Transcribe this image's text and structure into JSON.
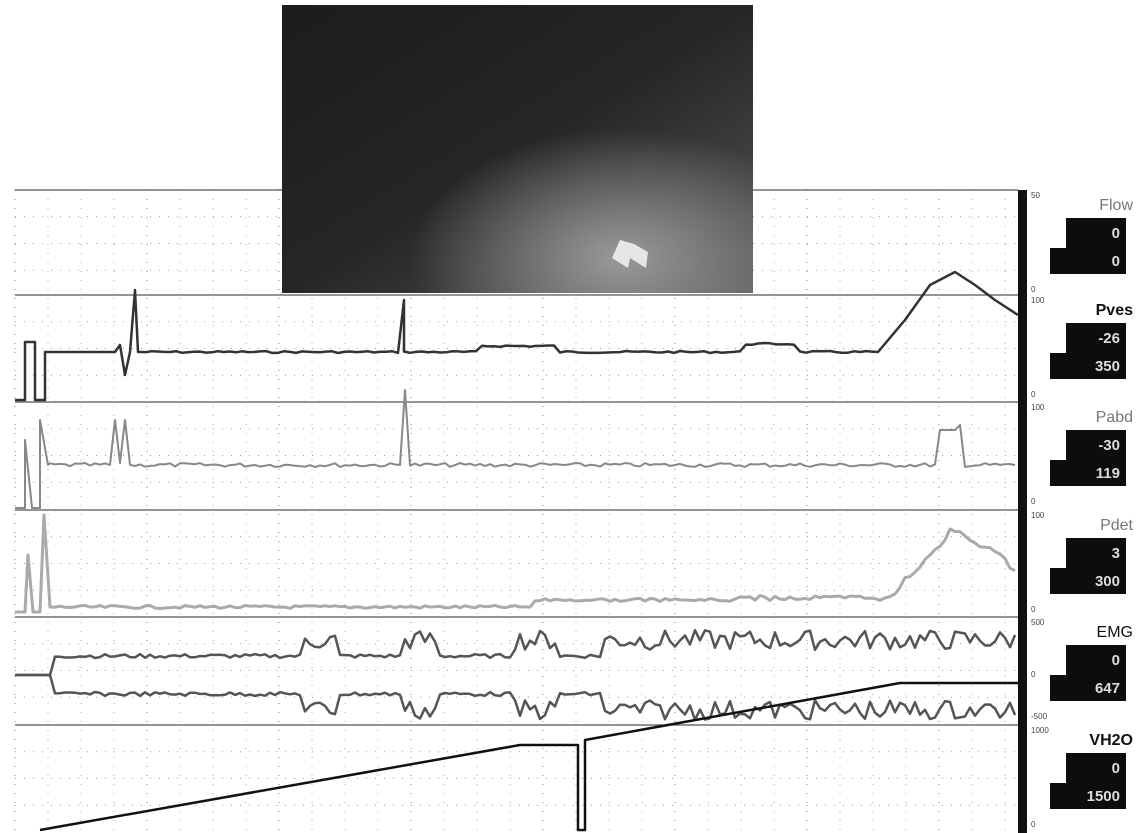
{
  "channels": [
    {
      "label": "Flow",
      "scale": [
        "50",
        "0"
      ],
      "readouts": [
        "0",
        "0"
      ]
    },
    {
      "label": "Pves",
      "scale": [
        "100",
        "0"
      ],
      "readouts": [
        "-26",
        "350"
      ]
    },
    {
      "label": "Pabd",
      "scale": [
        "100",
        "0"
      ],
      "readouts": [
        "-30",
        "119"
      ]
    },
    {
      "label": "Pdet",
      "scale": [
        "100",
        "0"
      ],
      "readouts": [
        "3",
        "300"
      ]
    },
    {
      "label": "EMG",
      "scale": [
        "500",
        "0",
        "-500"
      ],
      "readouts": [
        "0",
        "647"
      ]
    },
    {
      "label": "VH2O",
      "scale": [
        "1000",
        "0"
      ],
      "readouts": [
        "0",
        "1500"
      ]
    }
  ]
}
